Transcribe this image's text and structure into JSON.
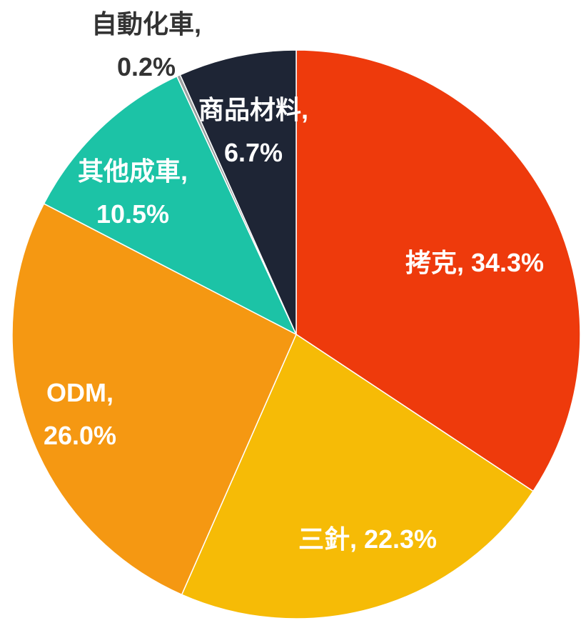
{
  "chart_data": {
    "type": "pie",
    "values": [
      34.3,
      22.3,
      26.0,
      10.5,
      0.2,
      6.7
    ],
    "value_labels": [
      [
        "拷克, 34.3%"
      ],
      [
        "三針, 22.3%"
      ],
      [
        "ODM,",
        "26.0%"
      ],
      [
        "其他成車,",
        "10.5%"
      ],
      [
        "自動化車,",
        "0.2%"
      ],
      [
        "商品材料,",
        "6.7%"
      ]
    ],
    "colors": [
      "#ee3a0c",
      "#f6bb06",
      "#f59812",
      "#1cc3a6",
      "#9aa0a0",
      "#1e2535"
    ]
  }
}
